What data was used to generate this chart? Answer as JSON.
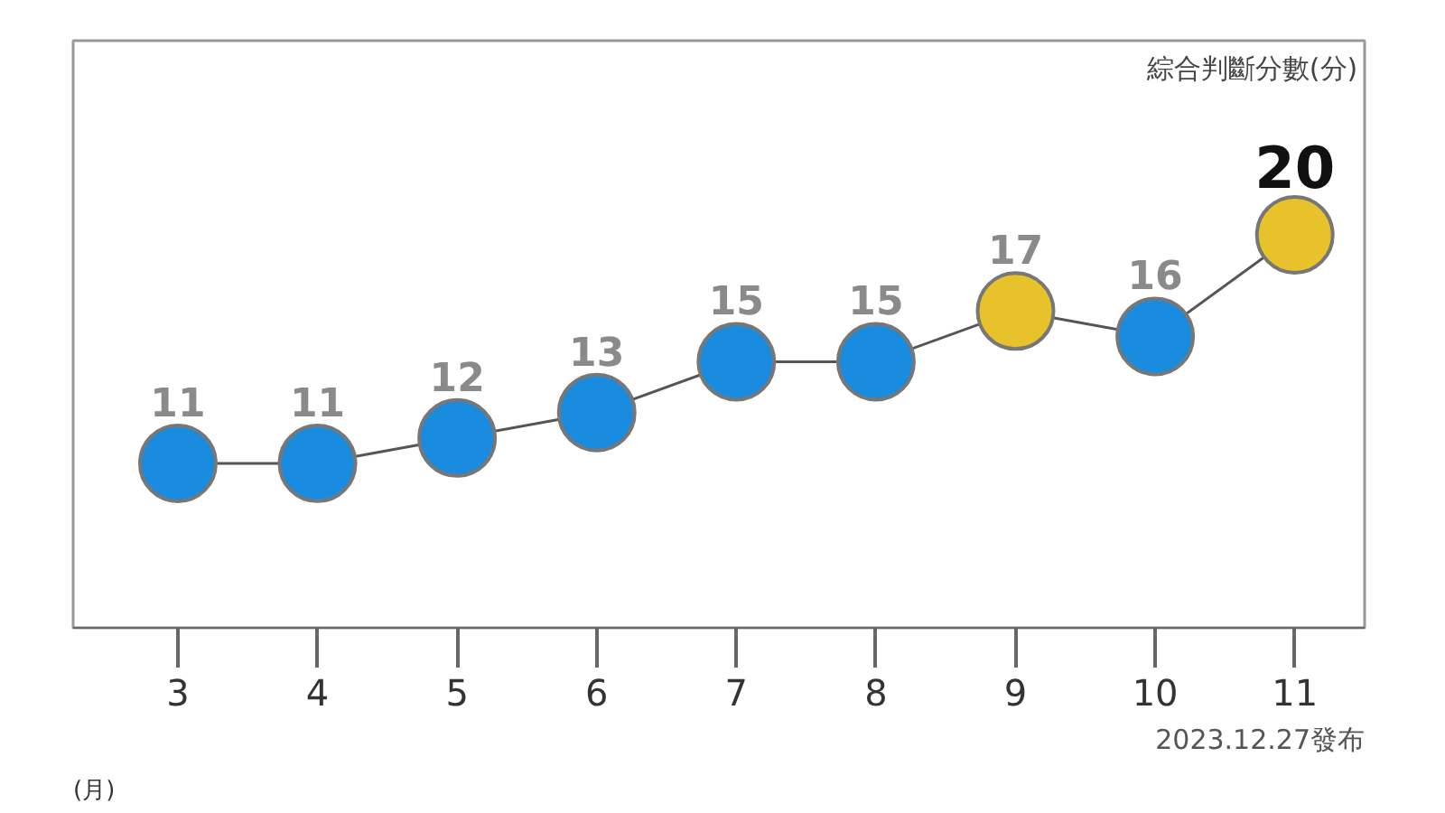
{
  "chart_data": {
    "type": "line",
    "xlabel": "(月)",
    "categories": [
      "3",
      "4",
      "5",
      "6",
      "7",
      "8",
      "9",
      "10",
      "11"
    ],
    "values": [
      11,
      11,
      12,
      13,
      15,
      15,
      17,
      16,
      20
    ],
    "colors": [
      "#1a8ce0",
      "#1a8ce0",
      "#1a8ce0",
      "#1a8ce0",
      "#1a8ce0",
      "#1a8ce0",
      "#e8c22a",
      "#1a8ce0",
      "#e8c22a"
    ],
    "color": "#555555",
    "marker": "circle",
    "data_labels": true,
    "grid": false,
    "annotations": [
      "綜合判斷分數(分)",
      "2023.12.27發布"
    ]
  }
}
